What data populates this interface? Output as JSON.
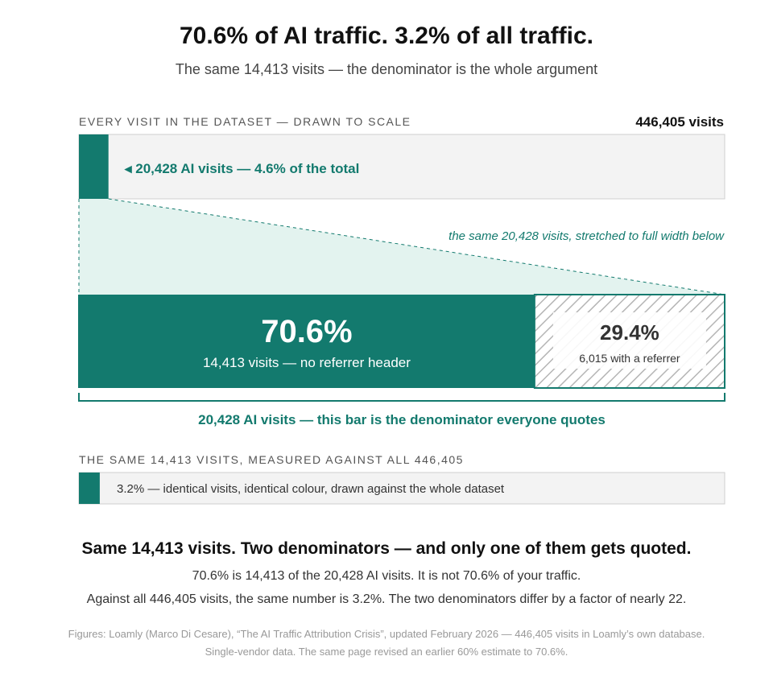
{
  "header": {
    "title": "70.6% of AI traffic. 3.2% of all traffic.",
    "subtitle": "The same 14,413 visits — the denominator is the whole argument"
  },
  "chart_data": {
    "type": "bar",
    "total_bar": {
      "label": "EVERY VISIT IN THE DATASET — DRAWN TO SCALE",
      "total_value_label": "446,405 visits",
      "total": 446405,
      "ai_visits": 20428,
      "annotation": "◂ 20,428 AI visits — 4.6% of the total"
    },
    "stretch_note": "the same 20,428 visits, stretched to full width below",
    "ai_bar": {
      "total": 20428,
      "segments": [
        {
          "name": "no referrer",
          "value": 14413,
          "percent_label": "70.6%",
          "sub_label": "14,413 visits — no referrer header"
        },
        {
          "name": "with referrer",
          "value": 6015,
          "percent_label": "29.4%",
          "sub_label": "6,015 with a referrer"
        }
      ],
      "bracket_label": "20,428 AI visits — this bar is the denominator everyone quotes"
    },
    "comparison_bar": {
      "label": "THE SAME 14,413 VISITS, MEASURED AGAINST ALL 446,405",
      "value": 14413,
      "total": 446405,
      "annotation": "3.2% — identical visits, identical colour, drawn against the whole dataset"
    },
    "colors": {
      "teal": "#137a6e",
      "teal_light": "#e3f3ef",
      "gray_bg": "#f3f3f3",
      "gray_border": "#cfcfcf",
      "hatch": "#b5b5b5"
    }
  },
  "footer": {
    "conclusion": "Same 14,413 visits. Two denominators — and only one of them gets quoted.",
    "line1": "70.6% is 14,413 of the 20,428 AI visits. It is not 70.6% of your traffic.",
    "line2": "Against all 446,405 visits, the same number is 3.2%. The two denominators differ by a factor of nearly 22.",
    "source1": "Figures: Loamly (Marco Di Cesare), “The AI Traffic Attribution Crisis”, updated February 2026 — 446,405 visits in Loamly’s own database.",
    "source2": "Single-vendor data. The same page revised an earlier 60% estimate to 70.6%."
  }
}
